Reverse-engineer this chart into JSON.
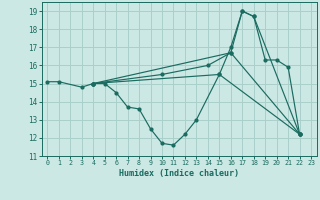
{
  "title": "",
  "xlabel": "Humidex (Indice chaleur)",
  "xlim": [
    -0.5,
    23.5
  ],
  "ylim": [
    11,
    19.5
  ],
  "yticks": [
    11,
    12,
    13,
    14,
    15,
    16,
    17,
    18,
    19
  ],
  "xticks": [
    0,
    1,
    2,
    3,
    4,
    5,
    6,
    7,
    8,
    9,
    10,
    11,
    12,
    13,
    14,
    15,
    16,
    17,
    18,
    19,
    20,
    21,
    22,
    23
  ],
  "bg_color": "#cce8e4",
  "grid_color": "#aacfcb",
  "line_color": "#1a6b60",
  "lines": [
    {
      "x": [
        0,
        1,
        3,
        4,
        5,
        6,
        7,
        8,
        9,
        10,
        11,
        12,
        13,
        15,
        16,
        17,
        18,
        19,
        20,
        21,
        22
      ],
      "y": [
        15.1,
        15.1,
        14.8,
        15.0,
        15.0,
        14.5,
        13.7,
        13.6,
        12.5,
        11.7,
        11.6,
        12.2,
        13.0,
        15.5,
        17.0,
        19.0,
        18.7,
        16.3,
        16.3,
        15.9,
        12.2
      ]
    },
    {
      "x": [
        4,
        10,
        14,
        16,
        22
      ],
      "y": [
        15.0,
        15.5,
        16.0,
        16.7,
        12.2
      ]
    },
    {
      "x": [
        4,
        16,
        17,
        18,
        22
      ],
      "y": [
        15.0,
        16.7,
        19.0,
        18.7,
        12.2
      ]
    },
    {
      "x": [
        4,
        15,
        22
      ],
      "y": [
        15.0,
        15.5,
        12.2
      ]
    }
  ]
}
